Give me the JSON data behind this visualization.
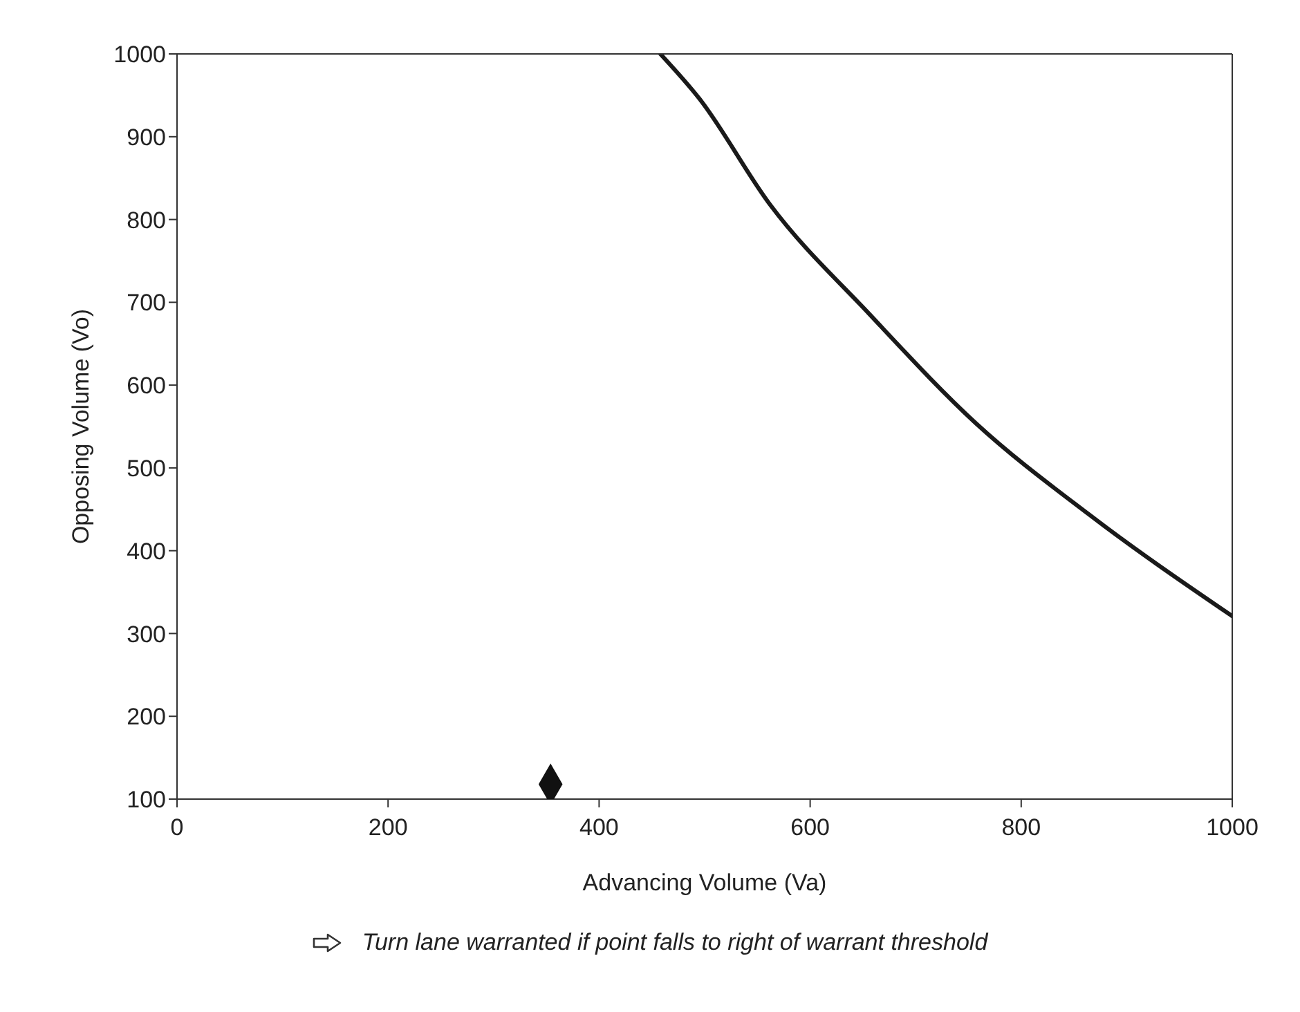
{
  "chart_data": {
    "type": "line",
    "xlabel": "Advancing Volume (Va)",
    "ylabel": "Opposing Volume (Vo)",
    "xlim": [
      0,
      1000
    ],
    "xticks": [
      0,
      200,
      400,
      600,
      800,
      1000
    ],
    "ylim": [
      100,
      1000
    ],
    "yticks": [
      100,
      200,
      300,
      400,
      500,
      600,
      700,
      800,
      900,
      1000
    ],
    "grid": false,
    "series": [
      {
        "color": "#1a1a1a",
        "marker": "none",
        "x": [
          458,
          495,
          562,
          656,
          757,
          864,
          1000
        ],
        "values": [
          1000,
          946,
          818,
          686,
          554,
          444,
          321
        ]
      },
      {
        "type": "scatter",
        "color": "#111111",
        "marker": "diamond",
        "x": [
          354
        ],
        "values": [
          118
        ]
      }
    ],
    "annotations": [
      "Turn lane warranted if point falls to right of warrant threshold"
    ]
  }
}
